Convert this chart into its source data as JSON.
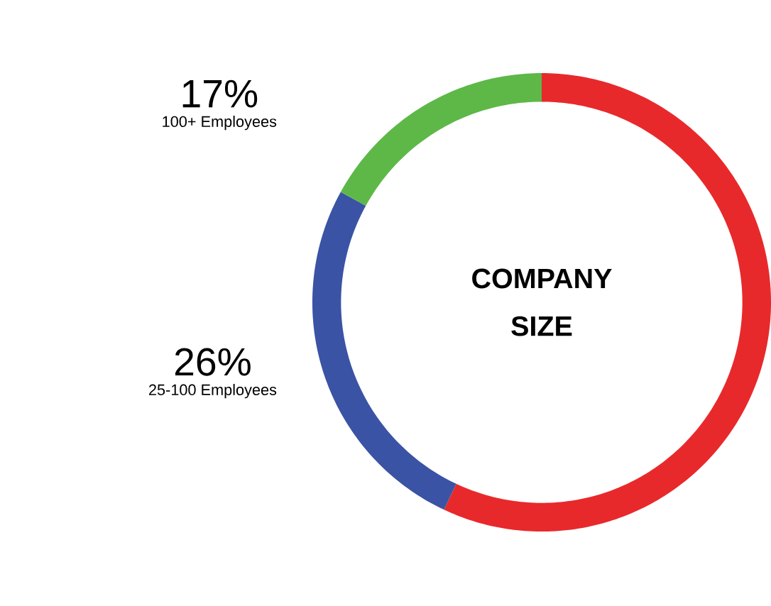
{
  "chart_data": {
    "type": "donut",
    "title": "COMPANY SIZE",
    "categories": [
      null,
      "25-100 Employees",
      "100+ Employees"
    ],
    "values": [
      57,
      26,
      17
    ],
    "value_labels": [
      null,
      "26%",
      "17%"
    ],
    "colors": [
      "#e8292b",
      "#3a53a4",
      "#5db848"
    ]
  }
}
